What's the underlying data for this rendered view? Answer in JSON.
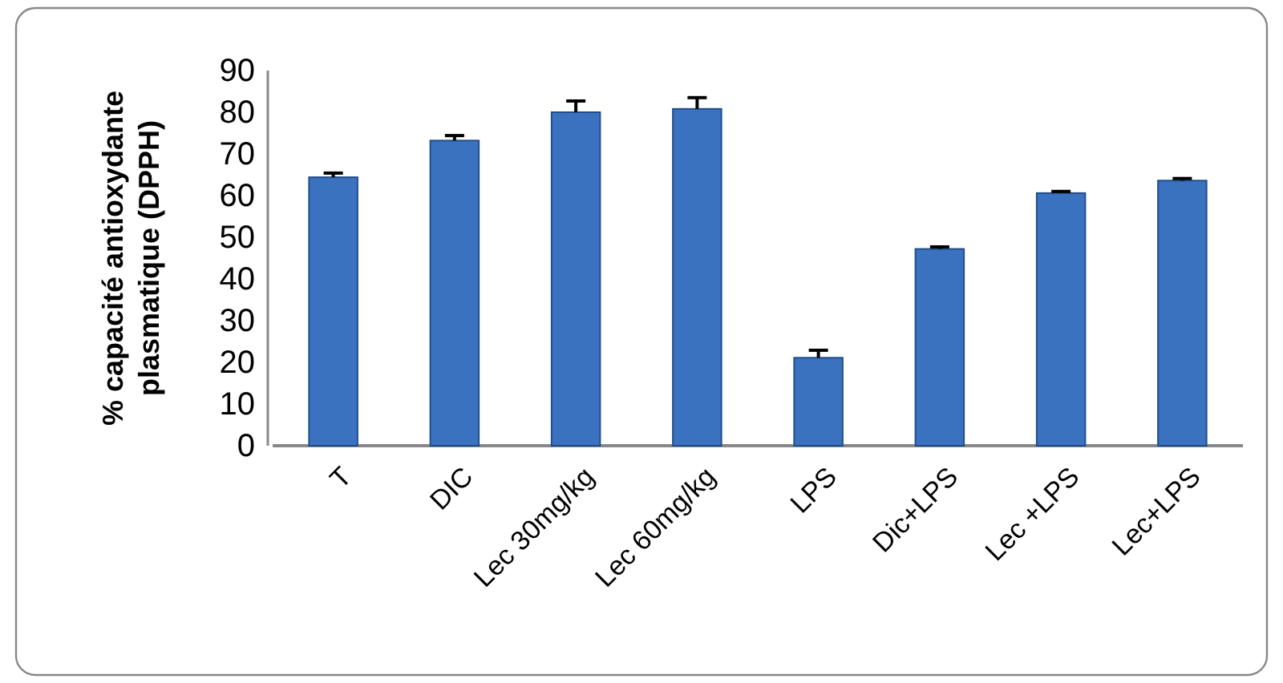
{
  "chart_data": {
    "type": "bar",
    "ylabel": "% capacité antioxydante plasmatique (DPPH)",
    "categories": [
      "T",
      "DIC",
      "Lec 30mg/kg",
      "Lec 60mg/kg",
      "LPS",
      "Dic+LPS",
      "Lec +LPS",
      "Lec+LPS"
    ],
    "values": [
      64.4,
      73.2,
      80.0,
      80.8,
      21.1,
      47.2,
      60.6,
      63.6
    ],
    "errors": [
      1.0,
      1.2,
      2.7,
      2.7,
      1.8,
      0.5,
      0.4,
      0.5
    ],
    "color": "#3b72c0",
    "ylim": [
      0,
      90
    ],
    "yticks": [
      0,
      10,
      20,
      30,
      40,
      50,
      60,
      70,
      80,
      90
    ],
    "grid": false
  }
}
